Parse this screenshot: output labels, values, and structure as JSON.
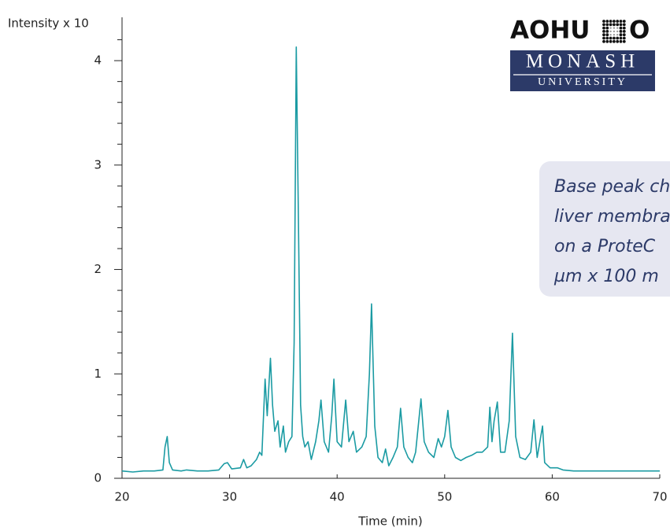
{
  "chart_data": {
    "type": "line",
    "y_label": "Intensity x 10",
    "x_label": "Time (min)",
    "xlim": [
      20,
      70
    ],
    "xticks": [
      20,
      30,
      40,
      50,
      60,
      70
    ],
    "ylim": [
      0,
      4.4
    ],
    "yticks": [
      0,
      1,
      2,
      3,
      4
    ],
    "yminor_ticks": [
      0.2,
      0.4,
      0.6,
      0.8,
      1.2,
      1.4,
      1.6,
      1.8,
      2.2,
      2.4,
      2.6,
      2.8,
      3.2,
      3.4,
      3.6,
      3.8,
      4.2
    ],
    "series": [
      {
        "color": "#1b9ba3",
        "x": [
          20,
          21,
          22,
          23,
          23.8,
          24.0,
          24.2,
          24.4,
          24.7,
          25.5,
          26,
          27,
          28,
          29,
          29.5,
          29.8,
          30.2,
          31,
          31.3,
          31.6,
          32,
          32.5,
          32.8,
          33,
          33.3,
          33.5,
          33.8,
          34.0,
          34.2,
          34.5,
          34.7,
          35,
          35.2,
          35.5,
          35.8,
          36,
          36.2,
          36.4,
          36.6,
          36.8,
          37.0,
          37.3,
          37.6,
          38,
          38.3,
          38.5,
          38.8,
          39.2,
          39.5,
          39.7,
          40,
          40.4,
          40.8,
          41.1,
          41.5,
          41.8,
          42.3,
          42.7,
          43.0,
          43.2,
          43.5,
          43.8,
          44.2,
          44.5,
          44.8,
          45.2,
          45.6,
          45.9,
          46.2,
          46.6,
          47,
          47.3,
          47.8,
          48.1,
          48.5,
          49,
          49.4,
          49.7,
          50,
          50.3,
          50.6,
          51,
          51.5,
          52,
          52.5,
          53,
          53.5,
          54,
          54.2,
          54.4,
          54.6,
          54.9,
          55.2,
          55.6,
          56.0,
          56.3,
          56.6,
          57,
          57.5,
          58,
          58.3,
          58.6,
          59.1,
          59.3,
          59.8,
          60.5,
          61,
          62,
          70
        ],
        "values": [
          0.07,
          0.06,
          0.07,
          0.07,
          0.08,
          0.3,
          0.4,
          0.15,
          0.08,
          0.07,
          0.08,
          0.07,
          0.07,
          0.08,
          0.14,
          0.15,
          0.09,
          0.1,
          0.18,
          0.1,
          0.12,
          0.18,
          0.25,
          0.22,
          0.95,
          0.6,
          1.15,
          0.7,
          0.45,
          0.55,
          0.3,
          0.5,
          0.25,
          0.35,
          0.4,
          1.3,
          4.13,
          2.5,
          0.7,
          0.4,
          0.3,
          0.35,
          0.18,
          0.35,
          0.55,
          0.75,
          0.35,
          0.25,
          0.6,
          0.95,
          0.35,
          0.3,
          0.75,
          0.35,
          0.45,
          0.25,
          0.3,
          0.4,
          1.0,
          1.67,
          0.5,
          0.2,
          0.15,
          0.28,
          0.12,
          0.2,
          0.3,
          0.67,
          0.3,
          0.2,
          0.15,
          0.25,
          0.76,
          0.35,
          0.25,
          0.2,
          0.38,
          0.3,
          0.4,
          0.65,
          0.3,
          0.2,
          0.17,
          0.2,
          0.22,
          0.25,
          0.25,
          0.3,
          0.68,
          0.35,
          0.55,
          0.73,
          0.25,
          0.25,
          0.55,
          1.39,
          0.4,
          0.2,
          0.18,
          0.25,
          0.56,
          0.2,
          0.5,
          0.15,
          0.1,
          0.1,
          0.08,
          0.07,
          0.07
        ]
      }
    ]
  },
  "logo": {
    "left": "AOHU",
    "right": "O",
    "line1": "MONASH",
    "line2": "UNIVERSITY"
  },
  "callout": {
    "lines": [
      "Base peak ch",
      "liver membra",
      "on a ProteC",
      "µm x 100 m"
    ]
  }
}
